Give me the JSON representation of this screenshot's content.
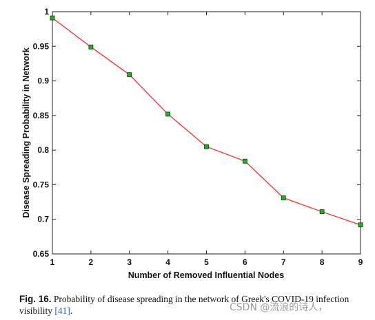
{
  "chart_data": {
    "type": "line",
    "x": [
      1,
      2,
      3,
      4,
      5,
      6,
      7,
      8,
      9
    ],
    "series": [
      {
        "values": [
          0.991,
          0.949,
          0.909,
          0.852,
          0.805,
          0.784,
          0.731,
          0.711,
          0.692
        ],
        "line_color": "#ff2a2a",
        "marker_color": "#1db31d"
      }
    ],
    "xlabel": "Number of Removed Influential Nodes",
    "ylabel": "Disease Spreading Probability in Network",
    "xlim": [
      1,
      9
    ],
    "ylim": [
      0.65,
      1
    ],
    "xticks": [
      "1",
      "2",
      "3",
      "4",
      "5",
      "6",
      "7",
      "8",
      "9"
    ],
    "yticks": [
      "0.65",
      "0.7",
      "0.75",
      "0.8",
      "0.85",
      "0.9",
      "0.95",
      "1"
    ],
    "grid": false
  },
  "caption": {
    "label": "Fig. 16.",
    "text_before_ref": " Probability of disease spreading in the network of Greek's COVID-19 infection visibility ",
    "ref": "[41]",
    "text_after_ref": "."
  },
  "watermark": "CSDN @流浪的诗人，"
}
